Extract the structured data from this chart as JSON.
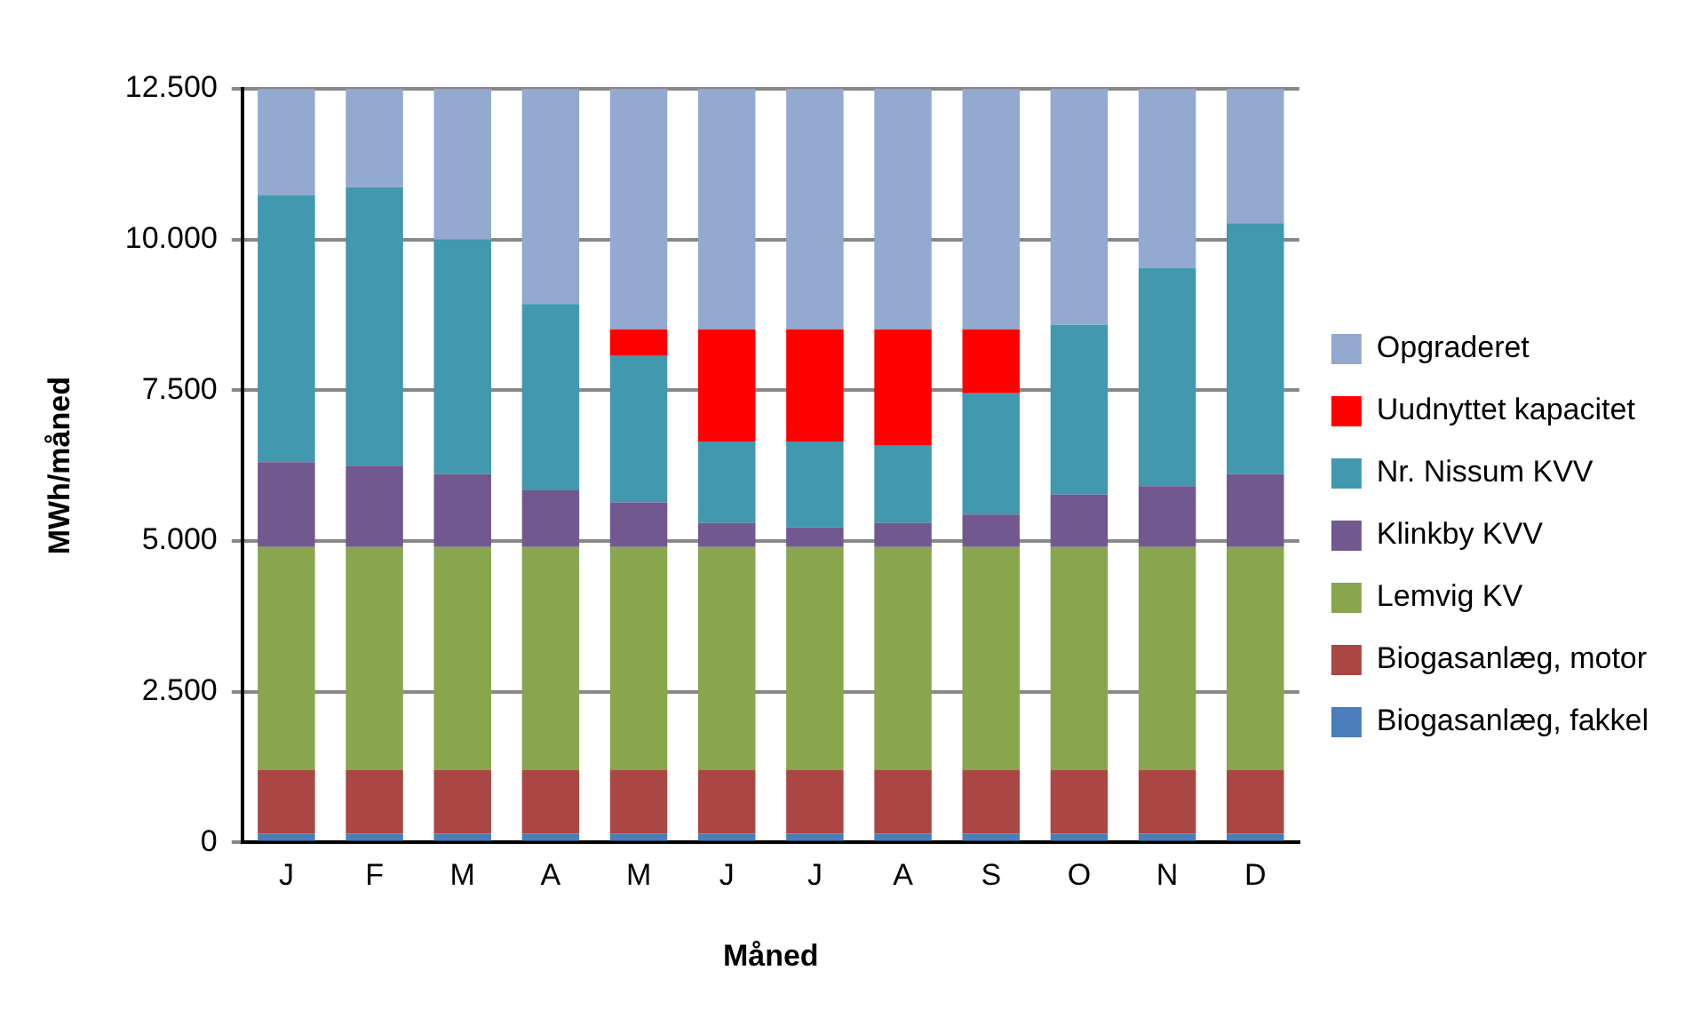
{
  "chart_data": {
    "type": "bar",
    "stacked": true,
    "xlabel": "Måned",
    "ylabel": "MWh/måned",
    "categories": [
      "J",
      "F",
      "M",
      "A",
      "M",
      "J",
      "J",
      "A",
      "S",
      "O",
      "N",
      "D"
    ],
    "series": [
      {
        "name": "Biogasanlæg, fakkel",
        "color": "#4a7ebb",
        "values": [
          150,
          150,
          150,
          150,
          150,
          150,
          150,
          150,
          150,
          150,
          150,
          150
        ]
      },
      {
        "name": "Biogasanlæg, motor",
        "color": "#aa4643",
        "values": [
          1050,
          1050,
          1050,
          1050,
          1050,
          1050,
          1050,
          1050,
          1050,
          1050,
          1050,
          1050
        ]
      },
      {
        "name": "Lemvig KV",
        "color": "#89a54e",
        "values": [
          3700,
          3700,
          3700,
          3700,
          3700,
          3700,
          3700,
          3700,
          3700,
          3700,
          3700,
          3700
        ]
      },
      {
        "name": "Klinkby KVV",
        "color": "#71588f",
        "values": [
          1410,
          1350,
          1210,
          940,
          740,
          400,
          330,
          400,
          540,
          870,
          1010,
          1210
        ]
      },
      {
        "name": "Nr. Nissum KVV",
        "color": "#4198af",
        "values": [
          4430,
          4620,
          3890,
          3090,
          2430,
          1350,
          1420,
          1280,
          2010,
          2820,
          3620,
          4160
        ]
      },
      {
        "name": "Uudnyttet kapacitet",
        "color": "#ff0000",
        "values": [
          null,
          null,
          null,
          null,
          440,
          1860,
          1860,
          1930,
          1060,
          null,
          null,
          null
        ]
      },
      {
        "name": "Opgraderet",
        "color": "#93a9cf",
        "values": [
          1760,
          1630,
          2500,
          3570,
          3990,
          3990,
          3990,
          3990,
          3990,
          3910,
          2970,
          2230
        ]
      }
    ],
    "ylim": [
      0,
      12500
    ],
    "yticks": [
      {
        "value": 0,
        "label": "0"
      },
      {
        "value": 2500,
        "label": "2.500"
      },
      {
        "value": 5000,
        "label": "5.000"
      },
      {
        "value": 7500,
        "label": "7.500"
      },
      {
        "value": 10000,
        "label": "10.000"
      },
      {
        "value": 12500,
        "label": "12.500"
      }
    ],
    "grid": "y",
    "legend": "right"
  }
}
